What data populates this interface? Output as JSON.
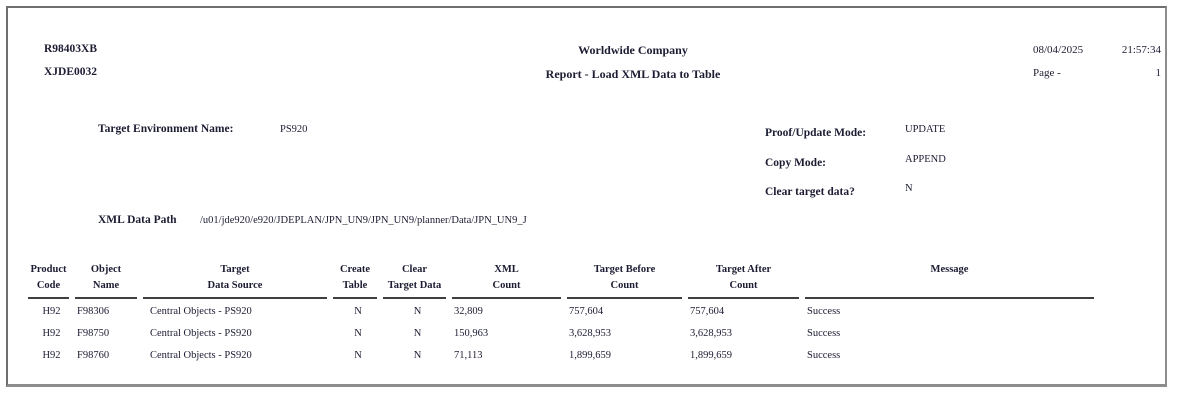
{
  "report": {
    "report_id": "R98403XB",
    "version": "XJDE0032",
    "company": "Worldwide Company",
    "title": "Report - Load XML Data to Table",
    "date": "08/04/2025",
    "time": "21:57:34",
    "page_label": "Page -",
    "page_number": "1"
  },
  "params": {
    "target_env_label": "Target Environment Name:",
    "target_env_value": "PS920",
    "proof_update_label": "Proof/Update Mode:",
    "proof_update_value": "UPDATE",
    "copy_mode_label": "Copy Mode:",
    "copy_mode_value": "APPEND",
    "clear_target_label": "Clear target data?",
    "clear_target_value": "N",
    "xml_path_label": "XML Data Path",
    "xml_path_value": "/u01/jde920/e920/JDEPLAN/JPN_UN9/JPN_UN9/planner/Data/JPN_UN9_J"
  },
  "table": {
    "columns": [
      {
        "line1": "Product",
        "line2": "Code"
      },
      {
        "line1": "Object",
        "line2": "Name"
      },
      {
        "line1": "Target",
        "line2": "Data Source"
      },
      {
        "line1": "Create",
        "line2": "Table"
      },
      {
        "line1": "Clear",
        "line2": "Target Data"
      },
      {
        "line1": "XML",
        "line2": "Count"
      },
      {
        "line1": "Target Before",
        "line2": "Count"
      },
      {
        "line1": "Target After",
        "line2": "Count"
      },
      {
        "line1": "Message",
        "line2": ""
      }
    ],
    "rows": [
      [
        "H92",
        "F98306",
        "Central Objects - PS920",
        "N",
        "N",
        "32,809",
        "757,604",
        "757,604",
        "Success"
      ],
      [
        "H92",
        "F98750",
        "Central Objects - PS920",
        "N",
        "N",
        "150,963",
        "3,628,953",
        "3,628,953",
        "Success"
      ],
      [
        "H92",
        "F98760",
        "Central Objects - PS920",
        "N",
        "N",
        "71,113",
        "1,899,659",
        "1,899,659",
        "Success"
      ]
    ]
  },
  "colors": {
    "text": "#1c1c33",
    "rule": "#3f3f3f",
    "frame_dark": "#6f6f6f",
    "frame_light": "#8d8d8d"
  }
}
